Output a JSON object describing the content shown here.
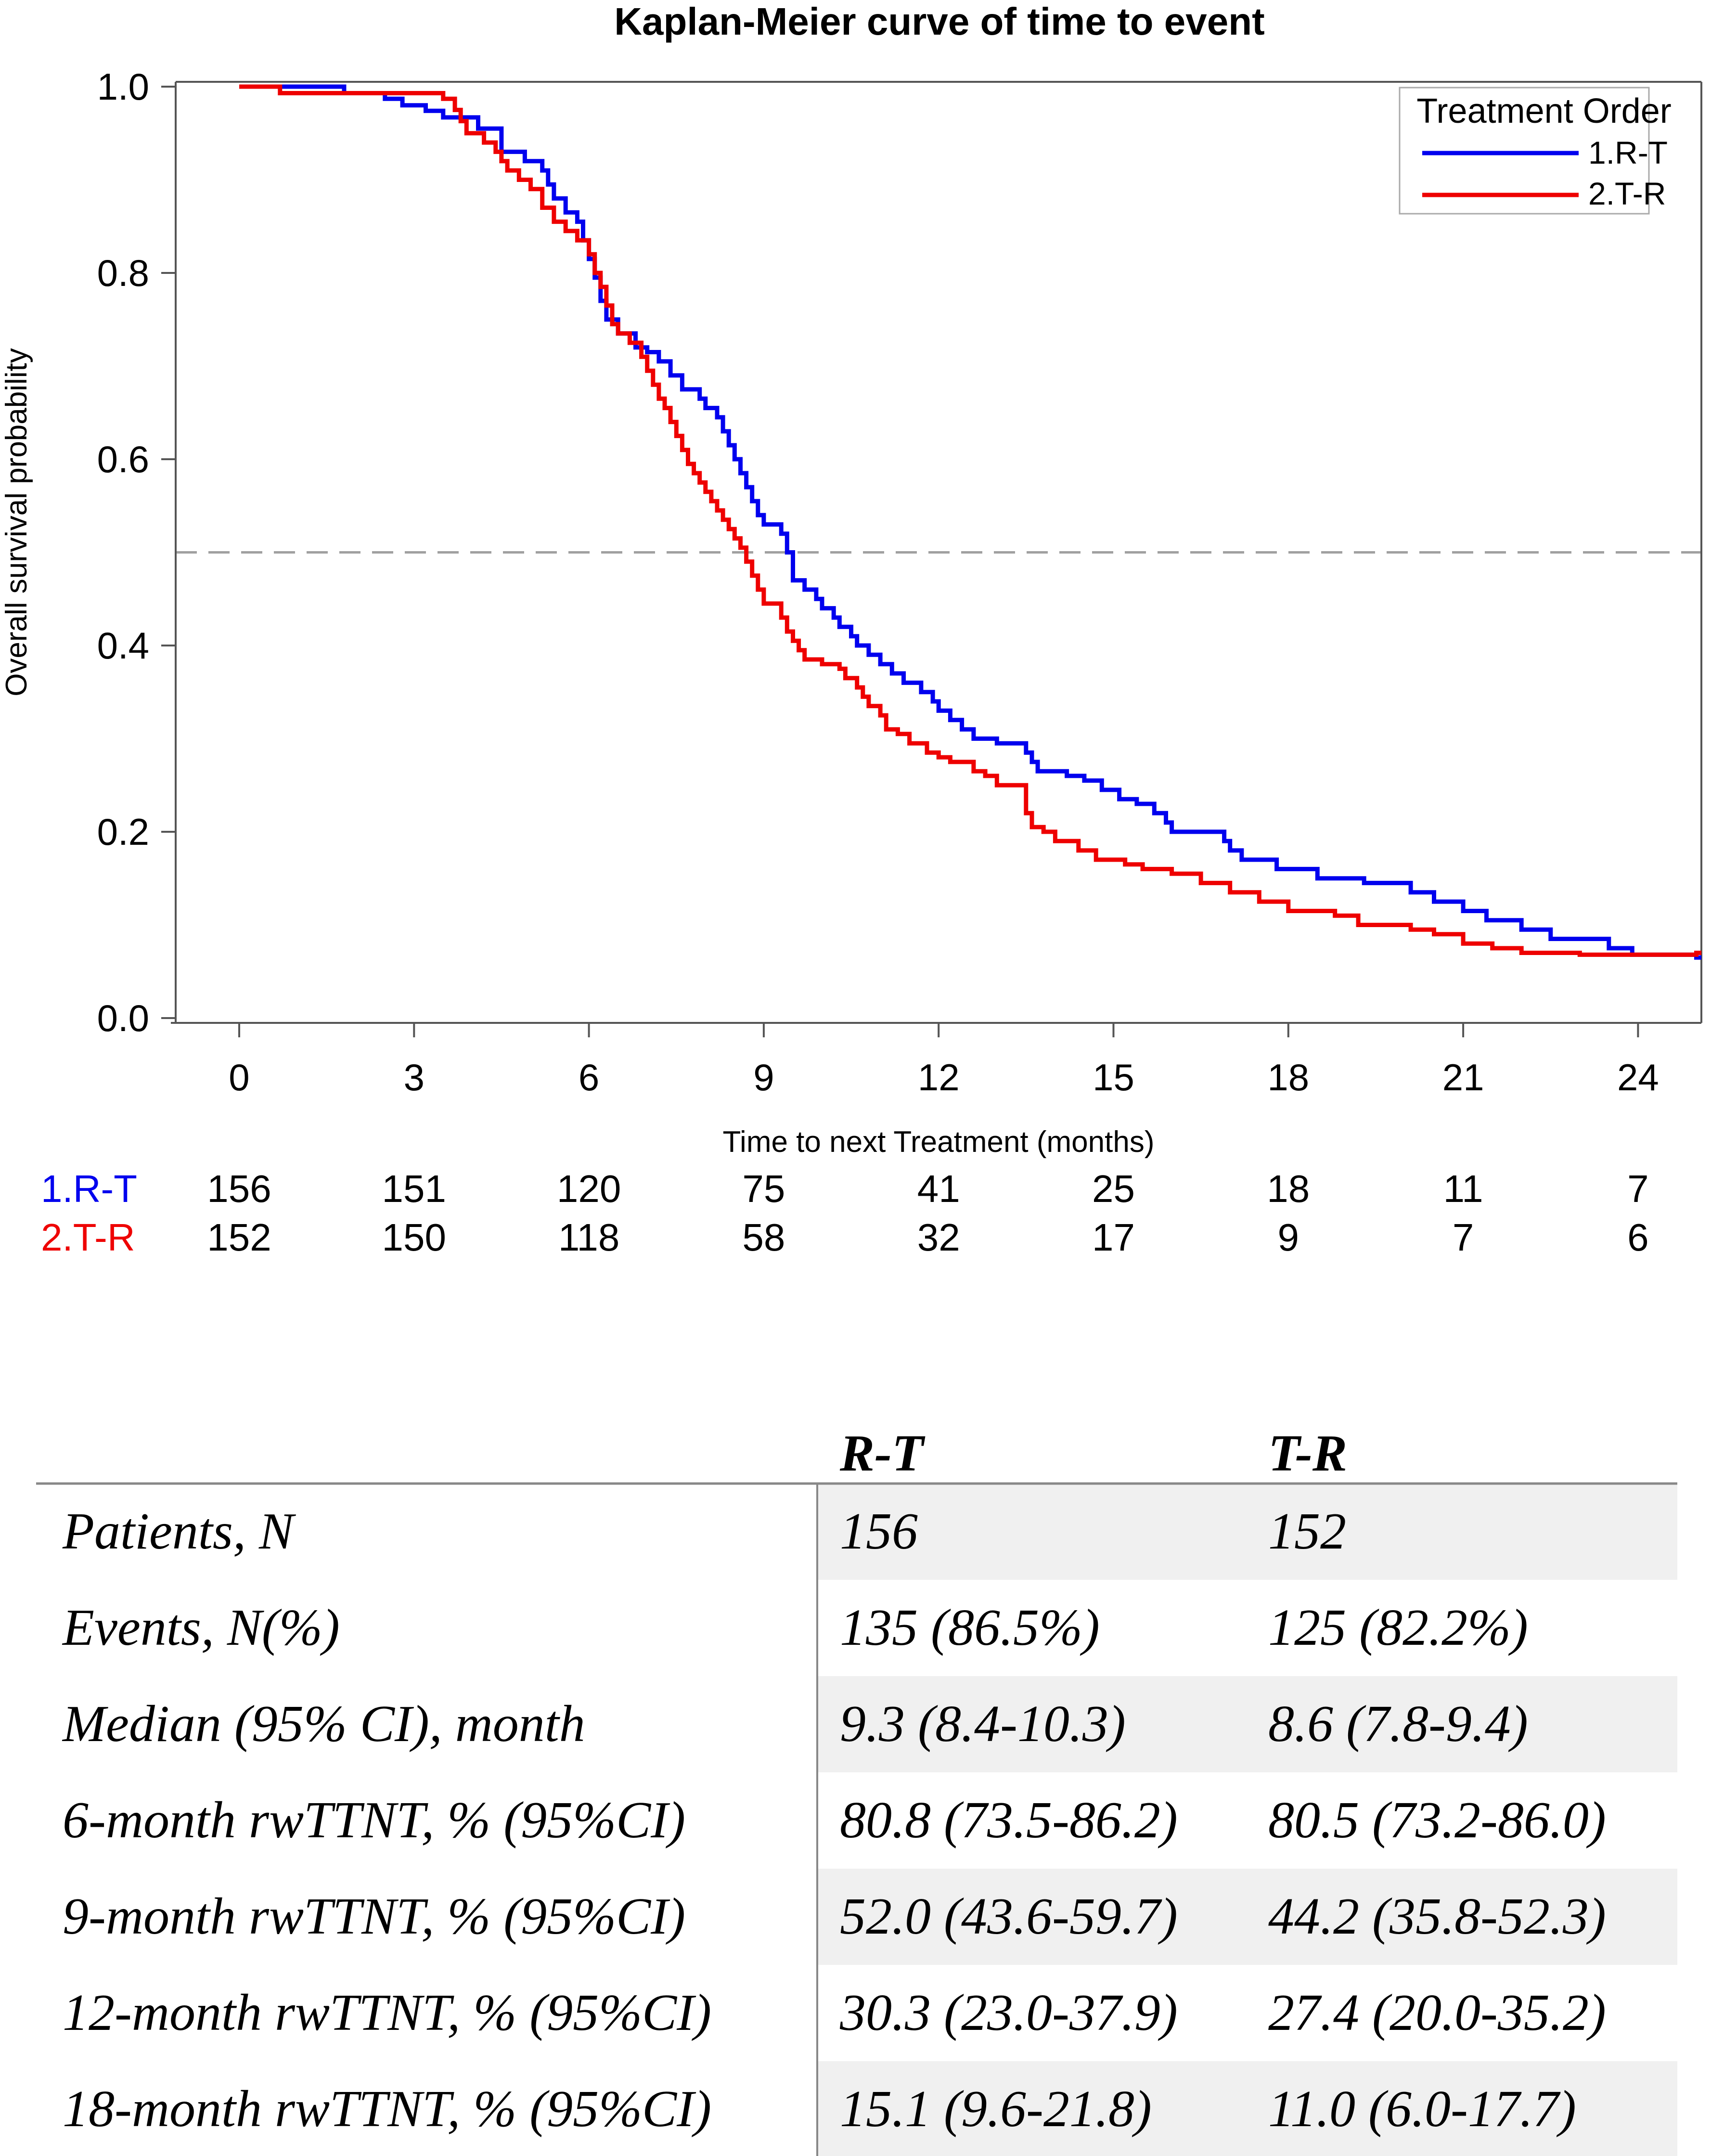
{
  "chart_data": {
    "type": "line",
    "subtype": "kaplan-meier-step",
    "title": "Kaplan-Meier curve of time to event",
    "xlabel": "Time to next Treatment (months)",
    "ylabel": "Overall survival probability",
    "xlim": [
      -1.5,
      25
    ],
    "ylim": [
      0,
      1
    ],
    "xticks": [
      0,
      3,
      6,
      9,
      12,
      15,
      18,
      21,
      24
    ],
    "yticks": [
      "0.0",
      "0.2",
      "0.4",
      "0.6",
      "0.8",
      "1.0"
    ],
    "reference_line": 0.5,
    "legend": {
      "title": "Treatment Order",
      "position": "top-right"
    },
    "series": [
      {
        "name": "1.R-T",
        "color": "#0000ee",
        "points": [
          [
            0,
            1.0
          ],
          [
            1.8,
            0.993
          ],
          [
            2.5,
            0.987
          ],
          [
            2.8,
            0.98
          ],
          [
            3.2,
            0.974
          ],
          [
            3.5,
            0.967
          ],
          [
            4.1,
            0.955
          ],
          [
            4.5,
            0.93
          ],
          [
            4.9,
            0.92
          ],
          [
            5.2,
            0.91
          ],
          [
            5.3,
            0.895
          ],
          [
            5.4,
            0.88
          ],
          [
            5.6,
            0.865
          ],
          [
            5.8,
            0.855
          ],
          [
            5.9,
            0.835
          ],
          [
            6.0,
            0.815
          ],
          [
            6.1,
            0.795
          ],
          [
            6.2,
            0.77
          ],
          [
            6.3,
            0.75
          ],
          [
            6.5,
            0.735
          ],
          [
            6.8,
            0.72
          ],
          [
            7.0,
            0.715
          ],
          [
            7.2,
            0.705
          ],
          [
            7.4,
            0.69
          ],
          [
            7.6,
            0.675
          ],
          [
            7.9,
            0.665
          ],
          [
            8.0,
            0.655
          ],
          [
            8.2,
            0.645
          ],
          [
            8.3,
            0.63
          ],
          [
            8.4,
            0.615
          ],
          [
            8.5,
            0.6
          ],
          [
            8.6,
            0.585
          ],
          [
            8.7,
            0.57
          ],
          [
            8.8,
            0.555
          ],
          [
            8.9,
            0.54
          ],
          [
            9.0,
            0.53
          ],
          [
            9.3,
            0.52
          ],
          [
            9.4,
            0.5
          ],
          [
            9.5,
            0.47
          ],
          [
            9.7,
            0.46
          ],
          [
            9.9,
            0.45
          ],
          [
            10.0,
            0.44
          ],
          [
            10.2,
            0.43
          ],
          [
            10.3,
            0.42
          ],
          [
            10.5,
            0.41
          ],
          [
            10.6,
            0.4
          ],
          [
            10.8,
            0.39
          ],
          [
            11.0,
            0.38
          ],
          [
            11.2,
            0.37
          ],
          [
            11.4,
            0.36
          ],
          [
            11.7,
            0.35
          ],
          [
            11.9,
            0.34
          ],
          [
            12.0,
            0.33
          ],
          [
            12.2,
            0.32
          ],
          [
            12.4,
            0.31
          ],
          [
            12.6,
            0.3
          ],
          [
            13.0,
            0.295
          ],
          [
            13.5,
            0.285
          ],
          [
            13.6,
            0.275
          ],
          [
            13.7,
            0.265
          ],
          [
            14.2,
            0.26
          ],
          [
            14.5,
            0.255
          ],
          [
            14.8,
            0.245
          ],
          [
            15.1,
            0.235
          ],
          [
            15.4,
            0.23
          ],
          [
            15.7,
            0.22
          ],
          [
            15.9,
            0.21
          ],
          [
            16.0,
            0.2
          ],
          [
            16.9,
            0.19
          ],
          [
            17.0,
            0.18
          ],
          [
            17.2,
            0.17
          ],
          [
            17.8,
            0.16
          ],
          [
            18.3,
            0.16
          ],
          [
            18.5,
            0.15
          ],
          [
            19.3,
            0.145
          ],
          [
            20.1,
            0.135
          ],
          [
            20.5,
            0.125
          ],
          [
            21.0,
            0.115
          ],
          [
            21.4,
            0.105
          ],
          [
            22.0,
            0.095
          ],
          [
            22.5,
            0.085
          ],
          [
            23.5,
            0.075
          ],
          [
            23.9,
            0.068
          ],
          [
            25,
            0.065
          ]
        ]
      },
      {
        "name": "2.T-R",
        "color": "#ee0000",
        "points": [
          [
            0,
            1.0
          ],
          [
            0.7,
            0.993
          ],
          [
            3.5,
            0.987
          ],
          [
            3.7,
            0.975
          ],
          [
            3.8,
            0.963
          ],
          [
            3.9,
            0.95
          ],
          [
            4.2,
            0.94
          ],
          [
            4.4,
            0.93
          ],
          [
            4.5,
            0.92
          ],
          [
            4.6,
            0.91
          ],
          [
            4.8,
            0.9
          ],
          [
            5.0,
            0.89
          ],
          [
            5.2,
            0.87
          ],
          [
            5.4,
            0.855
          ],
          [
            5.6,
            0.845
          ],
          [
            5.8,
            0.835
          ],
          [
            6.0,
            0.82
          ],
          [
            6.1,
            0.8
          ],
          [
            6.2,
            0.785
          ],
          [
            6.3,
            0.765
          ],
          [
            6.4,
            0.745
          ],
          [
            6.5,
            0.735
          ],
          [
            6.7,
            0.725
          ],
          [
            6.9,
            0.71
          ],
          [
            7.0,
            0.695
          ],
          [
            7.1,
            0.68
          ],
          [
            7.2,
            0.665
          ],
          [
            7.3,
            0.655
          ],
          [
            7.4,
            0.64
          ],
          [
            7.5,
            0.625
          ],
          [
            7.6,
            0.61
          ],
          [
            7.7,
            0.595
          ],
          [
            7.8,
            0.585
          ],
          [
            7.9,
            0.575
          ],
          [
            8.0,
            0.565
          ],
          [
            8.1,
            0.555
          ],
          [
            8.2,
            0.545
          ],
          [
            8.3,
            0.535
          ],
          [
            8.4,
            0.525
          ],
          [
            8.5,
            0.515
          ],
          [
            8.6,
            0.505
          ],
          [
            8.7,
            0.49
          ],
          [
            8.8,
            0.475
          ],
          [
            8.9,
            0.46
          ],
          [
            9.0,
            0.445
          ],
          [
            9.3,
            0.43
          ],
          [
            9.4,
            0.415
          ],
          [
            9.5,
            0.405
          ],
          [
            9.6,
            0.395
          ],
          [
            9.7,
            0.385
          ],
          [
            10.0,
            0.38
          ],
          [
            10.3,
            0.375
          ],
          [
            10.4,
            0.365
          ],
          [
            10.6,
            0.355
          ],
          [
            10.7,
            0.345
          ],
          [
            10.8,
            0.335
          ],
          [
            11.0,
            0.325
          ],
          [
            11.1,
            0.31
          ],
          [
            11.3,
            0.305
          ],
          [
            11.5,
            0.295
          ],
          [
            11.8,
            0.285
          ],
          [
            12.0,
            0.28
          ],
          [
            12.2,
            0.275
          ],
          [
            12.6,
            0.265
          ],
          [
            12.8,
            0.26
          ],
          [
            13.0,
            0.25
          ],
          [
            13.5,
            0.22
          ],
          [
            13.6,
            0.205
          ],
          [
            13.8,
            0.2
          ],
          [
            14.0,
            0.19
          ],
          [
            14.4,
            0.18
          ],
          [
            14.7,
            0.17
          ],
          [
            15.2,
            0.165
          ],
          [
            15.5,
            0.16
          ],
          [
            16.0,
            0.155
          ],
          [
            16.5,
            0.145
          ],
          [
            17.0,
            0.135
          ],
          [
            17.5,
            0.125
          ],
          [
            18.0,
            0.115
          ],
          [
            18.8,
            0.11
          ],
          [
            19.2,
            0.1
          ],
          [
            20.1,
            0.095
          ],
          [
            20.5,
            0.09
          ],
          [
            21.0,
            0.08
          ],
          [
            21.5,
            0.075
          ],
          [
            22.0,
            0.07
          ],
          [
            23.0,
            0.068
          ],
          [
            23.5,
            0.068
          ],
          [
            25,
            0.07
          ]
        ]
      }
    ],
    "risk_table": {
      "rows": [
        {
          "label": "1.R-T",
          "color": "#0000ee",
          "values": [
            "156",
            "151",
            "120",
            "75",
            "41",
            "25",
            "18",
            "11",
            "7"
          ]
        },
        {
          "label": "2.T-R",
          "color": "#ee0000",
          "values": [
            "152",
            "150",
            "118",
            "58",
            "32",
            "17",
            "9",
            "7",
            "6"
          ]
        }
      ]
    }
  },
  "summary_table": {
    "headers": [
      "",
      "R-T",
      "T-R"
    ],
    "rows": [
      [
        "Patients, N",
        "156",
        "152"
      ],
      [
        "Events, N(%)",
        "135 (86.5%)",
        "125 (82.2%)"
      ],
      [
        "Median (95% CI), month",
        "9.3 (8.4-10.3)",
        "8.6 (7.8-9.4)"
      ],
      [
        "6-month rwTTNT, % (95%CI)",
        "80.8 (73.5-86.2)",
        "80.5 (73.2-86.0)"
      ],
      [
        "9-month rwTTNT, % (95%CI)",
        "52.0 (43.6-59.7)",
        "44.2 (35.8-52.3)"
      ],
      [
        "12-month rwTTNT, % (95%CI)",
        "30.3 (23.0-37.9)",
        "27.4 (20.0-35.2)"
      ],
      [
        "18-month rwTTNT, % (95%CI)",
        "15.1 (9.6-21.8)",
        "11.0 (6.0-17.7)"
      ]
    ]
  }
}
